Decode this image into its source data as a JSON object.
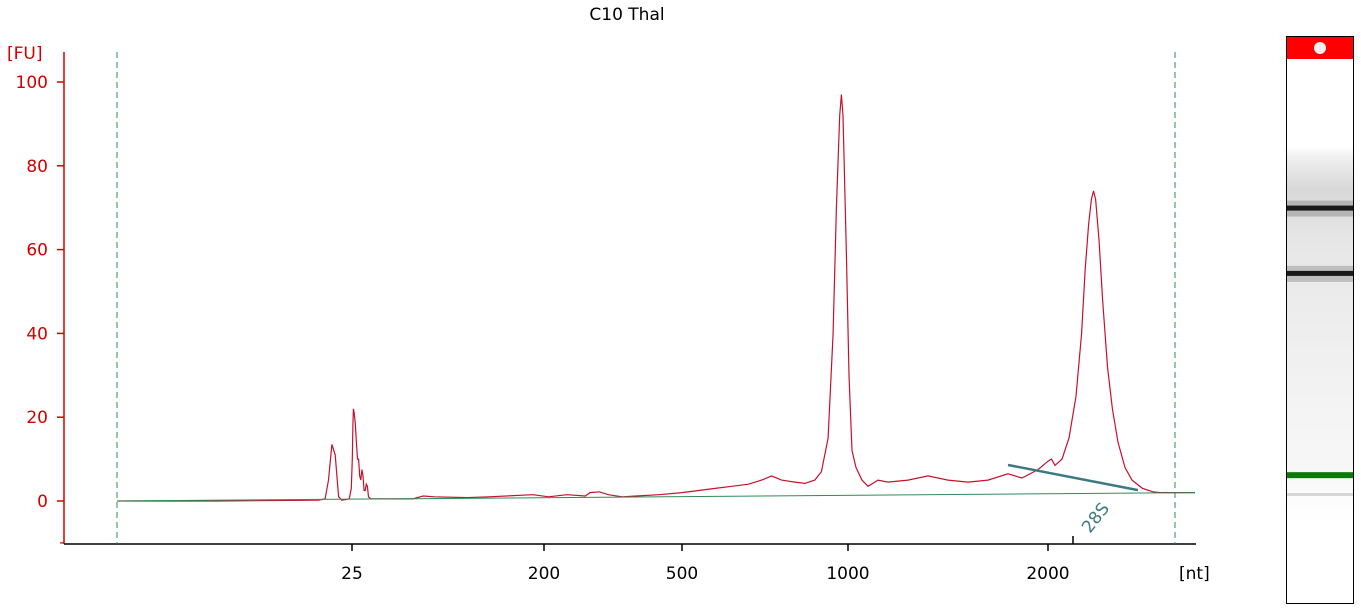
{
  "chart_data": {
    "type": "line",
    "title": "C10 Thal",
    "ylabel": "[FU]",
    "xlabel": "[nt]",
    "ylim": [
      -10,
      105
    ],
    "y_ticks": [
      0,
      20,
      40,
      60,
      80,
      100
    ],
    "x_ticks": [
      "25",
      "200",
      "500",
      "1000",
      "2000"
    ],
    "x_scale": "ladder (piecewise)",
    "series": [
      {
        "color": "#c8102e",
        "points": [
          [
            -10,
            0
          ],
          [
            5,
            0
          ],
          [
            20,
            0.2
          ],
          [
            21,
            0.5
          ],
          [
            21.5,
            5
          ],
          [
            22,
            13.5
          ],
          [
            22.5,
            11
          ],
          [
            23,
            1
          ],
          [
            23.5,
            0.2
          ],
          [
            24.6,
            0.5
          ],
          [
            24.9,
            3
          ],
          [
            25.3,
            10
          ],
          [
            25.8,
            18
          ],
          [
            26.3,
            22
          ],
          [
            27,
            21
          ],
          [
            28,
            18.5
          ],
          [
            29,
            14
          ],
          [
            30,
            10
          ],
          [
            31,
            10
          ],
          [
            32,
            6
          ],
          [
            33,
            5
          ],
          [
            34,
            7.5
          ],
          [
            35,
            6
          ],
          [
            36,
            2.5
          ],
          [
            37,
            2.5
          ],
          [
            38,
            4
          ],
          [
            39,
            3.5
          ],
          [
            40,
            1
          ],
          [
            42,
            0.5
          ],
          [
            60,
            0.5
          ],
          [
            80,
            0.5
          ],
          [
            90,
            1.2
          ],
          [
            100,
            1
          ],
          [
            130,
            0.8
          ],
          [
            150,
            1
          ],
          [
            190,
            1.5
          ],
          [
            210,
            1
          ],
          [
            250,
            1.5
          ],
          [
            290,
            1.2
          ],
          [
            300,
            2
          ],
          [
            320,
            2.2
          ],
          [
            340,
            1.5
          ],
          [
            370,
            1
          ],
          [
            400,
            1.2
          ],
          [
            450,
            1.5
          ],
          [
            500,
            2
          ],
          [
            550,
            2.5
          ],
          [
            600,
            3
          ],
          [
            650,
            3.5
          ],
          [
            700,
            4
          ],
          [
            740,
            5
          ],
          [
            770,
            6
          ],
          [
            800,
            5
          ],
          [
            840,
            4.5
          ],
          [
            870,
            4.2
          ],
          [
            900,
            5
          ],
          [
            920,
            7
          ],
          [
            940,
            15
          ],
          [
            955,
            40
          ],
          [
            965,
            70
          ],
          [
            975,
            92
          ],
          [
            980,
            97
          ],
          [
            985,
            92
          ],
          [
            995,
            60
          ],
          [
            1005,
            30
          ],
          [
            1020,
            12
          ],
          [
            1040,
            8
          ],
          [
            1070,
            5
          ],
          [
            1100,
            3.5
          ],
          [
            1150,
            5
          ],
          [
            1200,
            4.5
          ],
          [
            1300,
            5
          ],
          [
            1400,
            6
          ],
          [
            1500,
            5
          ],
          [
            1600,
            4.5
          ],
          [
            1700,
            5
          ],
          [
            1800,
            6.5
          ],
          [
            1870,
            5.5
          ],
          [
            1950,
            7.5
          ],
          [
            2000,
            9.5
          ],
          [
            2050,
            10
          ],
          [
            2100,
            8.5
          ],
          [
            2200,
            10
          ],
          [
            2300,
            15
          ],
          [
            2400,
            25
          ],
          [
            2480,
            40
          ],
          [
            2530,
            55
          ],
          [
            2580,
            66
          ],
          [
            2620,
            72
          ],
          [
            2650,
            74
          ],
          [
            2680,
            72
          ],
          [
            2730,
            62
          ],
          [
            2780,
            48
          ],
          [
            2850,
            32
          ],
          [
            2920,
            22
          ],
          [
            3000,
            14
          ],
          [
            3100,
            8
          ],
          [
            3200,
            5
          ],
          [
            3350,
            3
          ],
          [
            3500,
            2.2
          ],
          [
            3600,
            2
          ],
          [
            3900,
            2
          ],
          [
            4100,
            2
          ]
        ]
      },
      {
        "color": "#2e8b57",
        "points": [
          [
            -10,
            0
          ],
          [
            4100,
            2
          ]
        ]
      }
    ],
    "annotations": [
      {
        "label": "28S",
        "x": 3000,
        "color": "#3d7a80"
      }
    ],
    "gel_lane": {
      "bands": [
        {
          "pos": 0.275,
          "intensity": 0.95
        },
        {
          "pos": 0.395,
          "intensity": 0.95
        },
        {
          "pos": 0.765,
          "intensity": 1,
          "color": "#0a7a0a"
        }
      ],
      "marker_color": "#ff0000"
    }
  }
}
